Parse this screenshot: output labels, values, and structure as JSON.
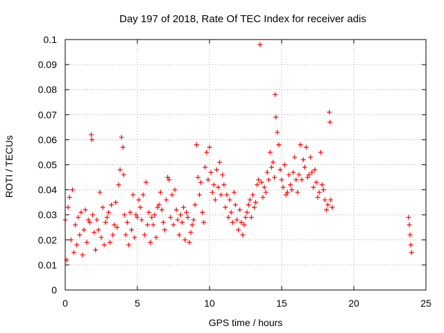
{
  "chart_data": {
    "type": "scatter",
    "title": "Day 197 of 2018, Rate Of TEC Index for receiver adis",
    "xlabel": "GPS time / hours",
    "ylabel": "ROTI / TECUs",
    "xlim": [
      0,
      25
    ],
    "ylim": [
      0,
      0.1
    ],
    "x_ticks": [
      0,
      5,
      10,
      15,
      20,
      25
    ],
    "x_tick_labels": [
      "0",
      "5",
      "10",
      "15",
      "20",
      "25"
    ],
    "y_ticks": [
      0,
      0.01,
      0.02,
      0.03,
      0.04,
      0.05,
      0.06,
      0.07,
      0.08,
      0.09,
      0.1
    ],
    "y_tick_labels": [
      "0",
      "0.01",
      "0.02",
      "0.03",
      "0.04",
      "0.05",
      "0.06",
      "0.07",
      "0.08",
      "0.09",
      "0.1"
    ],
    "grid": true,
    "marker": "+",
    "color": "#ff0000",
    "series": [
      {
        "name": "ROTI",
        "x": [
          0.0,
          0.1,
          0.2,
          0.3,
          0.4,
          0.5,
          0.6,
          0.7,
          0.8,
          0.9,
          1.0,
          1.1,
          1.2,
          1.3,
          1.4,
          1.5,
          1.6,
          1.7,
          1.8,
          1.85,
          1.9,
          2.0,
          2.1,
          2.2,
          2.3,
          2.4,
          2.5,
          2.6,
          2.7,
          2.8,
          2.9,
          3.0,
          3.1,
          3.2,
          3.3,
          3.4,
          3.5,
          3.6,
          3.7,
          3.8,
          3.9,
          4.0,
          4.05,
          4.1,
          4.2,
          4.3,
          4.4,
          4.5,
          4.6,
          4.7,
          4.8,
          4.9,
          5.0,
          5.1,
          5.2,
          5.3,
          5.4,
          5.5,
          5.6,
          5.7,
          5.8,
          5.9,
          6.0,
          6.1,
          6.2,
          6.3,
          6.4,
          6.5,
          6.6,
          6.7,
          6.8,
          6.9,
          7.0,
          7.1,
          7.2,
          7.3,
          7.4,
          7.5,
          7.6,
          7.7,
          7.8,
          7.9,
          8.0,
          8.1,
          8.2,
          8.3,
          8.4,
          8.5,
          8.6,
          8.7,
          8.8,
          8.9,
          9.0,
          9.1,
          9.2,
          9.3,
          9.4,
          9.5,
          9.6,
          9.7,
          9.8,
          9.9,
          10.0,
          10.1,
          10.2,
          10.3,
          10.4,
          10.5,
          10.6,
          10.7,
          10.8,
          10.9,
          11.0,
          11.1,
          11.2,
          11.3,
          11.4,
          11.5,
          11.6,
          11.7,
          11.8,
          11.9,
          12.0,
          12.1,
          12.2,
          12.3,
          12.4,
          12.5,
          12.6,
          12.7,
          12.8,
          12.9,
          13.0,
          13.1,
          13.2,
          13.3,
          13.4,
          13.5,
          13.6,
          13.7,
          13.8,
          13.9,
          14.0,
          14.1,
          14.2,
          14.3,
          14.4,
          14.5,
          14.55,
          14.6,
          14.7,
          14.8,
          14.9,
          15.0,
          15.1,
          15.2,
          15.3,
          15.4,
          15.5,
          15.6,
          15.7,
          15.8,
          15.9,
          16.0,
          16.1,
          16.2,
          16.3,
          16.4,
          16.5,
          16.6,
          16.7,
          16.8,
          16.9,
          17.0,
          17.1,
          17.2,
          17.3,
          17.4,
          17.5,
          17.6,
          17.7,
          17.8,
          17.9,
          18.0,
          18.1,
          18.2,
          18.3,
          18.35,
          18.4,
          18.5,
          23.8,
          23.85,
          23.9,
          23.95,
          24.0
        ],
        "y": [
          0.028,
          0.012,
          0.033,
          0.037,
          0.02,
          0.04,
          0.015,
          0.026,
          0.018,
          0.029,
          0.022,
          0.031,
          0.014,
          0.024,
          0.032,
          0.019,
          0.028,
          0.027,
          0.062,
          0.06,
          0.03,
          0.023,
          0.016,
          0.028,
          0.024,
          0.039,
          0.021,
          0.033,
          0.018,
          0.027,
          0.029,
          0.031,
          0.019,
          0.034,
          0.022,
          0.026,
          0.035,
          0.025,
          0.042,
          0.048,
          0.061,
          0.057,
          0.046,
          0.03,
          0.022,
          0.027,
          0.018,
          0.031,
          0.024,
          0.038,
          0.021,
          0.03,
          0.029,
          0.036,
          0.033,
          0.028,
          0.038,
          0.022,
          0.043,
          0.026,
          0.031,
          0.019,
          0.029,
          0.026,
          0.03,
          0.021,
          0.033,
          0.034,
          0.039,
          0.032,
          0.027,
          0.024,
          0.036,
          0.045,
          0.044,
          0.029,
          0.038,
          0.026,
          0.04,
          0.032,
          0.028,
          0.022,
          0.03,
          0.027,
          0.033,
          0.02,
          0.031,
          0.029,
          0.019,
          0.023,
          0.026,
          0.028,
          0.034,
          0.058,
          0.045,
          0.038,
          0.043,
          0.031,
          0.027,
          0.049,
          0.055,
          0.044,
          0.057,
          0.047,
          0.039,
          0.042,
          0.036,
          0.048,
          0.041,
          0.051,
          0.038,
          0.046,
          0.042,
          0.033,
          0.038,
          0.029,
          0.036,
          0.031,
          0.027,
          0.039,
          0.034,
          0.028,
          0.024,
          0.032,
          0.027,
          0.022,
          0.026,
          0.029,
          0.031,
          0.034,
          0.036,
          0.029,
          0.038,
          0.033,
          0.035,
          0.042,
          0.044,
          0.098,
          0.043,
          0.037,
          0.041,
          0.039,
          0.047,
          0.044,
          0.055,
          0.049,
          0.051,
          0.045,
          0.078,
          0.069,
          0.063,
          0.058,
          0.048,
          0.044,
          0.041,
          0.05,
          0.038,
          0.039,
          0.046,
          0.042,
          0.04,
          0.047,
          0.053,
          0.044,
          0.039,
          0.046,
          0.058,
          0.044,
          0.052,
          0.049,
          0.057,
          0.045,
          0.046,
          0.053,
          0.047,
          0.041,
          0.048,
          0.043,
          0.037,
          0.039,
          0.055,
          0.042,
          0.04,
          0.036,
          0.032,
          0.034,
          0.071,
          0.067,
          0.036,
          0.033,
          0.029,
          0.026,
          0.022,
          0.018,
          0.015
        ]
      }
    ]
  }
}
